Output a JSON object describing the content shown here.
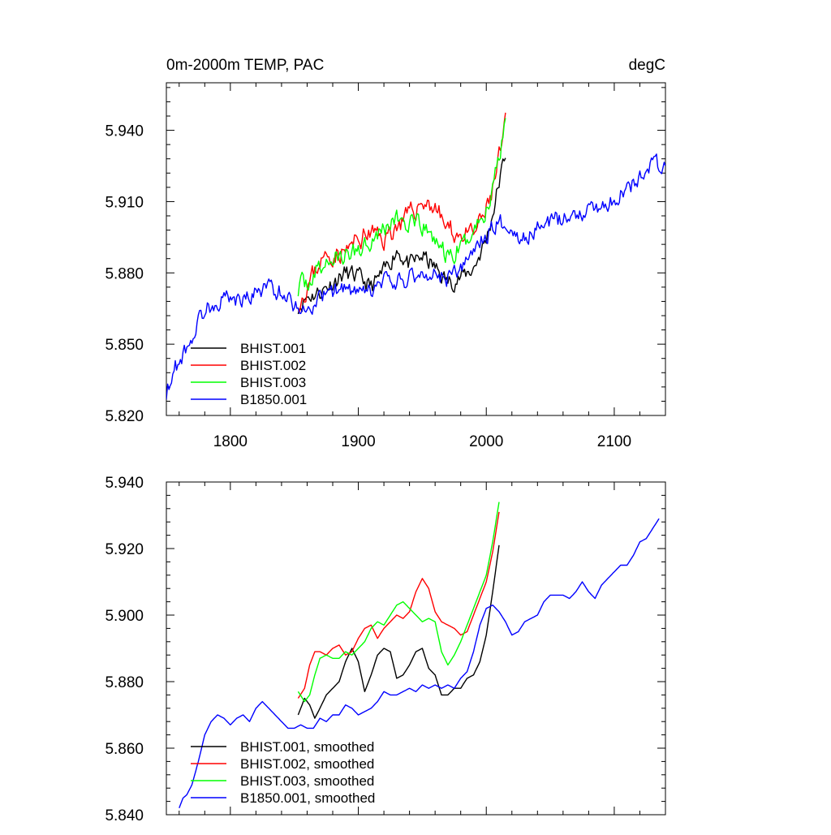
{
  "colors": {
    "BHIST.001": "#000000",
    "BHIST.002": "#ff0000",
    "BHIST.003": "#00ff00",
    "B1850.001": "#0000ff"
  },
  "chart_data": [
    {
      "type": "line",
      "title": "0m-2000m TEMP, PAC",
      "units": "degC",
      "xlabel": "",
      "ylabel": "",
      "xlim": [
        1750,
        2140
      ],
      "ylim": [
        5.82,
        5.96
      ],
      "xticks": [
        "1800",
        "1900",
        "2000",
        "2100"
      ],
      "xtick_values": [
        1800,
        1900,
        2000,
        2100
      ],
      "yticks": [
        "5.820",
        "5.850",
        "5.880",
        "5.910",
        "5.940"
      ],
      "ytick_values": [
        5.82,
        5.85,
        5.88,
        5.91,
        5.94
      ],
      "legend_position": "bottom-left",
      "series": [
        {
          "name": "BHIST.001",
          "color": "#000000",
          "noise": 0.006,
          "seed": 11,
          "x": [
            1853,
            1860,
            1870,
            1880,
            1890,
            1900,
            1910,
            1920,
            1930,
            1940,
            1950,
            1960,
            1970,
            1980,
            1990,
            2000,
            2005,
            2010,
            2015
          ],
          "y": [
            5.866,
            5.87,
            5.872,
            5.876,
            5.88,
            5.878,
            5.874,
            5.88,
            5.89,
            5.883,
            5.887,
            5.882,
            5.876,
            5.878,
            5.882,
            5.894,
            5.905,
            5.918,
            5.93
          ]
        },
        {
          "name": "BHIST.002",
          "color": "#ff0000",
          "noise": 0.007,
          "seed": 23,
          "x": [
            1853,
            1860,
            1870,
            1880,
            1890,
            1900,
            1910,
            1920,
            1930,
            1940,
            1950,
            1960,
            1970,
            1980,
            1990,
            2000,
            2005,
            2010,
            2015
          ],
          "y": [
            5.868,
            5.874,
            5.885,
            5.888,
            5.889,
            5.894,
            5.897,
            5.894,
            5.9,
            5.904,
            5.91,
            5.908,
            5.898,
            5.896,
            5.896,
            5.906,
            5.915,
            5.928,
            5.942
          ]
        },
        {
          "name": "BHIST.003",
          "color": "#00ff00",
          "noise": 0.007,
          "seed": 37,
          "x": [
            1853,
            1860,
            1870,
            1880,
            1890,
            1900,
            1910,
            1920,
            1930,
            1940,
            1950,
            1960,
            1970,
            1980,
            1990,
            2000,
            2005,
            2010,
            2015
          ],
          "y": [
            5.874,
            5.876,
            5.882,
            5.886,
            5.887,
            5.89,
            5.895,
            5.899,
            5.903,
            5.9,
            5.899,
            5.894,
            5.886,
            5.89,
            5.898,
            5.906,
            5.917,
            5.93,
            5.946
          ]
        },
        {
          "name": "B1850.001",
          "color": "#0000ff",
          "noise": 0.006,
          "seed": 53,
          "x": [
            1750,
            1755,
            1760,
            1765,
            1770,
            1780,
            1790,
            1800,
            1810,
            1820,
            1830,
            1840,
            1850,
            1860,
            1870,
            1880,
            1890,
            1900,
            1910,
            1920,
            1930,
            1940,
            1950,
            1960,
            1970,
            1980,
            1990,
            2000,
            2010,
            2020,
            2030,
            2040,
            2050,
            2060,
            2070,
            2080,
            2090,
            2100,
            2110,
            2120,
            2130,
            2135,
            2140
          ],
          "y": [
            5.83,
            5.838,
            5.843,
            5.848,
            5.853,
            5.865,
            5.868,
            5.87,
            5.868,
            5.872,
            5.874,
            5.872,
            5.867,
            5.864,
            5.869,
            5.872,
            5.874,
            5.87,
            5.872,
            5.876,
            5.876,
            5.878,
            5.88,
            5.879,
            5.878,
            5.881,
            5.889,
            5.896,
            5.902,
            5.898,
            5.894,
            5.899,
            5.901,
            5.903,
            5.905,
            5.907,
            5.907,
            5.912,
            5.914,
            5.921,
            5.926,
            5.925,
            5.924
          ]
        }
      ]
    },
    {
      "type": "line",
      "title": "",
      "xlabel": "",
      "ylabel": "",
      "xlim": [
        1750,
        2140
      ],
      "ylim": [
        5.84,
        5.94
      ],
      "xticks": [],
      "xtick_values": [
        1800,
        1900,
        2000,
        2100
      ],
      "yticks": [
        "5.840",
        "5.860",
        "5.880",
        "5.900",
        "5.920",
        "5.940"
      ],
      "ytick_values": [
        5.84,
        5.86,
        5.88,
        5.9,
        5.92,
        5.94
      ],
      "legend_position": "bottom-left",
      "series": [
        {
          "name": "BHIST.001, smoothed",
          "color": "#000000",
          "noise": 0.0,
          "seed": 0,
          "x": [
            1853,
            1858,
            1862,
            1866,
            1870,
            1875,
            1880,
            1885,
            1890,
            1895,
            1900,
            1905,
            1910,
            1915,
            1920,
            1925,
            1930,
            1935,
            1940,
            1945,
            1950,
            1955,
            1960,
            1965,
            1970,
            1975,
            1980,
            1985,
            1990,
            1995,
            2000,
            2005,
            2010
          ],
          "y": [
            5.87,
            5.875,
            5.873,
            5.869,
            5.872,
            5.876,
            5.878,
            5.88,
            5.886,
            5.89,
            5.886,
            5.877,
            5.882,
            5.888,
            5.89,
            5.889,
            5.881,
            5.882,
            5.885,
            5.889,
            5.89,
            5.884,
            5.882,
            5.876,
            5.876,
            5.878,
            5.878,
            5.881,
            5.882,
            5.886,
            5.894,
            5.907,
            5.921
          ]
        },
        {
          "name": "BHIST.002, smoothed",
          "color": "#ff0000",
          "noise": 0.0,
          "seed": 0,
          "x": [
            1853,
            1858,
            1862,
            1866,
            1870,
            1875,
            1880,
            1885,
            1890,
            1895,
            1900,
            1905,
            1910,
            1915,
            1920,
            1925,
            1930,
            1935,
            1940,
            1945,
            1950,
            1955,
            1960,
            1965,
            1970,
            1975,
            1980,
            1985,
            1990,
            1995,
            2000,
            2005,
            2010
          ],
          "y": [
            5.875,
            5.878,
            5.885,
            5.889,
            5.889,
            5.888,
            5.89,
            5.891,
            5.888,
            5.889,
            5.893,
            5.896,
            5.897,
            5.893,
            5.896,
            5.898,
            5.9,
            5.899,
            5.901,
            5.907,
            5.911,
            5.908,
            5.901,
            5.898,
            5.897,
            5.896,
            5.894,
            5.895,
            5.9,
            5.905,
            5.91,
            5.919,
            5.931
          ]
        },
        {
          "name": "BHIST.003, smoothed",
          "color": "#00ff00",
          "noise": 0.0,
          "seed": 0,
          "x": [
            1853,
            1858,
            1862,
            1866,
            1870,
            1875,
            1880,
            1885,
            1890,
            1895,
            1900,
            1905,
            1910,
            1915,
            1920,
            1925,
            1930,
            1935,
            1940,
            1945,
            1950,
            1955,
            1960,
            1965,
            1970,
            1975,
            1980,
            1985,
            1990,
            1995,
            2000,
            2005,
            2010
          ],
          "y": [
            5.877,
            5.874,
            5.876,
            5.882,
            5.887,
            5.888,
            5.887,
            5.887,
            5.889,
            5.888,
            5.89,
            5.892,
            5.896,
            5.898,
            5.897,
            5.9,
            5.903,
            5.904,
            5.902,
            5.9,
            5.898,
            5.899,
            5.898,
            5.889,
            5.885,
            5.888,
            5.892,
            5.897,
            5.902,
            5.907,
            5.912,
            5.922,
            5.934
          ]
        },
        {
          "name": "B1850.001, smoothed",
          "color": "#0000ff",
          "noise": 0.0,
          "seed": 0,
          "x": [
            1760,
            1763,
            1766,
            1770,
            1775,
            1780,
            1785,
            1790,
            1795,
            1800,
            1805,
            1810,
            1815,
            1820,
            1825,
            1830,
            1835,
            1840,
            1845,
            1850,
            1855,
            1860,
            1865,
            1870,
            1875,
            1880,
            1885,
            1890,
            1895,
            1900,
            1905,
            1910,
            1915,
            1920,
            1925,
            1930,
            1935,
            1940,
            1945,
            1950,
            1955,
            1960,
            1965,
            1970,
            1975,
            1980,
            1985,
            1990,
            1995,
            2000,
            2005,
            2010,
            2015,
            2020,
            2025,
            2030,
            2035,
            2040,
            2045,
            2050,
            2055,
            2060,
            2065,
            2070,
            2075,
            2080,
            2085,
            2090,
            2095,
            2100,
            2105,
            2110,
            2115,
            2120,
            2125,
            2130,
            2135
          ],
          "y": [
            5.842,
            5.845,
            5.846,
            5.849,
            5.856,
            5.864,
            5.868,
            5.87,
            5.869,
            5.867,
            5.869,
            5.87,
            5.868,
            5.872,
            5.874,
            5.872,
            5.87,
            5.868,
            5.866,
            5.866,
            5.867,
            5.866,
            5.866,
            5.869,
            5.868,
            5.87,
            5.87,
            5.873,
            5.872,
            5.87,
            5.871,
            5.872,
            5.874,
            5.877,
            5.876,
            5.876,
            5.877,
            5.878,
            5.877,
            5.879,
            5.878,
            5.879,
            5.878,
            5.879,
            5.878,
            5.881,
            5.883,
            5.889,
            5.897,
            5.902,
            5.903,
            5.901,
            5.898,
            5.894,
            5.895,
            5.898,
            5.899,
            5.9,
            5.904,
            5.906,
            5.906,
            5.906,
            5.905,
            5.907,
            5.91,
            5.907,
            5.905,
            5.909,
            5.911,
            5.913,
            5.915,
            5.915,
            5.918,
            5.922,
            5.923,
            5.926,
            5.929
          ]
        }
      ]
    }
  ]
}
